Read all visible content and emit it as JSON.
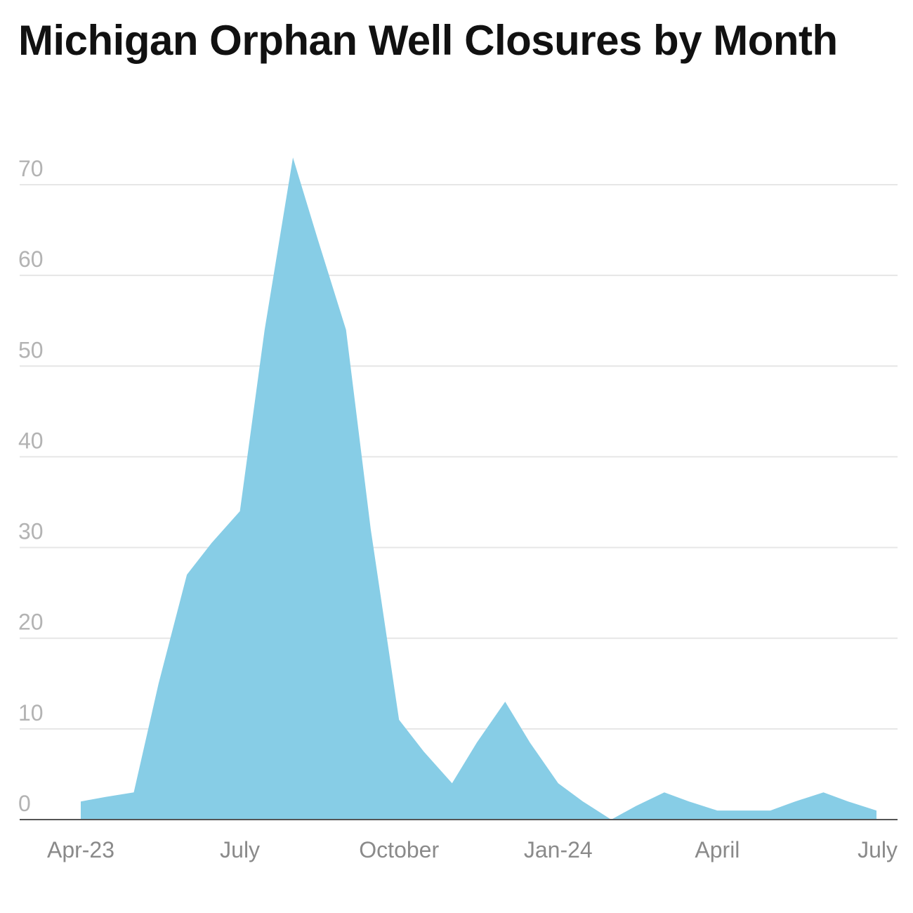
{
  "chart_data": {
    "type": "area",
    "title": "Michigan Orphan Well Closures by Month",
    "xlabel": "",
    "ylabel": "",
    "x": [
      "2023-04",
      "2023-05",
      "2023-06",
      "2023-07",
      "2023-08",
      "2023-09",
      "2023-10",
      "2023-11",
      "2023-12",
      "2024-01",
      "2024-02",
      "2024-03",
      "2024-04",
      "2024-05",
      "2024-06",
      "2024-07"
    ],
    "x_tick_labels": [
      {
        "x": "2023-04",
        "label": "Apr-23"
      },
      {
        "x": "2023-07",
        "label": "July"
      },
      {
        "x": "2023-10",
        "label": "October"
      },
      {
        "x": "2024-01",
        "label": "Jan-24"
      },
      {
        "x": "2024-04",
        "label": "April"
      },
      {
        "x": "2024-07",
        "label": "July"
      }
    ],
    "y_ticks": [
      0,
      10,
      20,
      30,
      40,
      50,
      60,
      70
    ],
    "ylim": [
      0,
      70
    ],
    "grid": true,
    "legend": "none",
    "color": "#87cde6",
    "points": [
      {
        "x": "2023-04",
        "y": 2
      },
      {
        "x": "2023-04-15",
        "y": 2.5
      },
      {
        "x": "2023-05",
        "y": 3
      },
      {
        "x": "2023-05-15",
        "y": 15
      },
      {
        "x": "2023-06",
        "y": 27
      },
      {
        "x": "2023-06-15",
        "y": 30.5
      },
      {
        "x": "2023-07",
        "y": 34
      },
      {
        "x": "2023-07-15",
        "y": 54
      },
      {
        "x": "2023-08",
        "y": 73
      },
      {
        "x": "2023-08-15",
        "y": 64
      },
      {
        "x": "2023-09",
        "y": 54
      },
      {
        "x": "2023-09-15",
        "y": 32
      },
      {
        "x": "2023-10",
        "y": 11
      },
      {
        "x": "2023-10-15",
        "y": 7.5
      },
      {
        "x": "2023-11",
        "y": 4
      },
      {
        "x": "2023-11-15",
        "y": 8.5
      },
      {
        "x": "2023-12",
        "y": 13
      },
      {
        "x": "2023-12-15",
        "y": 8.5
      },
      {
        "x": "2024-01",
        "y": 4
      },
      {
        "x": "2024-01-15",
        "y": 2
      },
      {
        "x": "2024-02",
        "y": 0
      },
      {
        "x": "2024-02-15",
        "y": 1.5
      },
      {
        "x": "2024-03",
        "y": 3
      },
      {
        "x": "2024-03-15",
        "y": 2
      },
      {
        "x": "2024-04",
        "y": 1
      },
      {
        "x": "2024-04-15",
        "y": 1
      },
      {
        "x": "2024-05",
        "y": 1
      },
      {
        "x": "2024-05-15",
        "y": 2
      },
      {
        "x": "2024-06",
        "y": 3
      },
      {
        "x": "2024-06-15",
        "y": 2
      },
      {
        "x": "2024-07",
        "y": 1
      }
    ]
  }
}
